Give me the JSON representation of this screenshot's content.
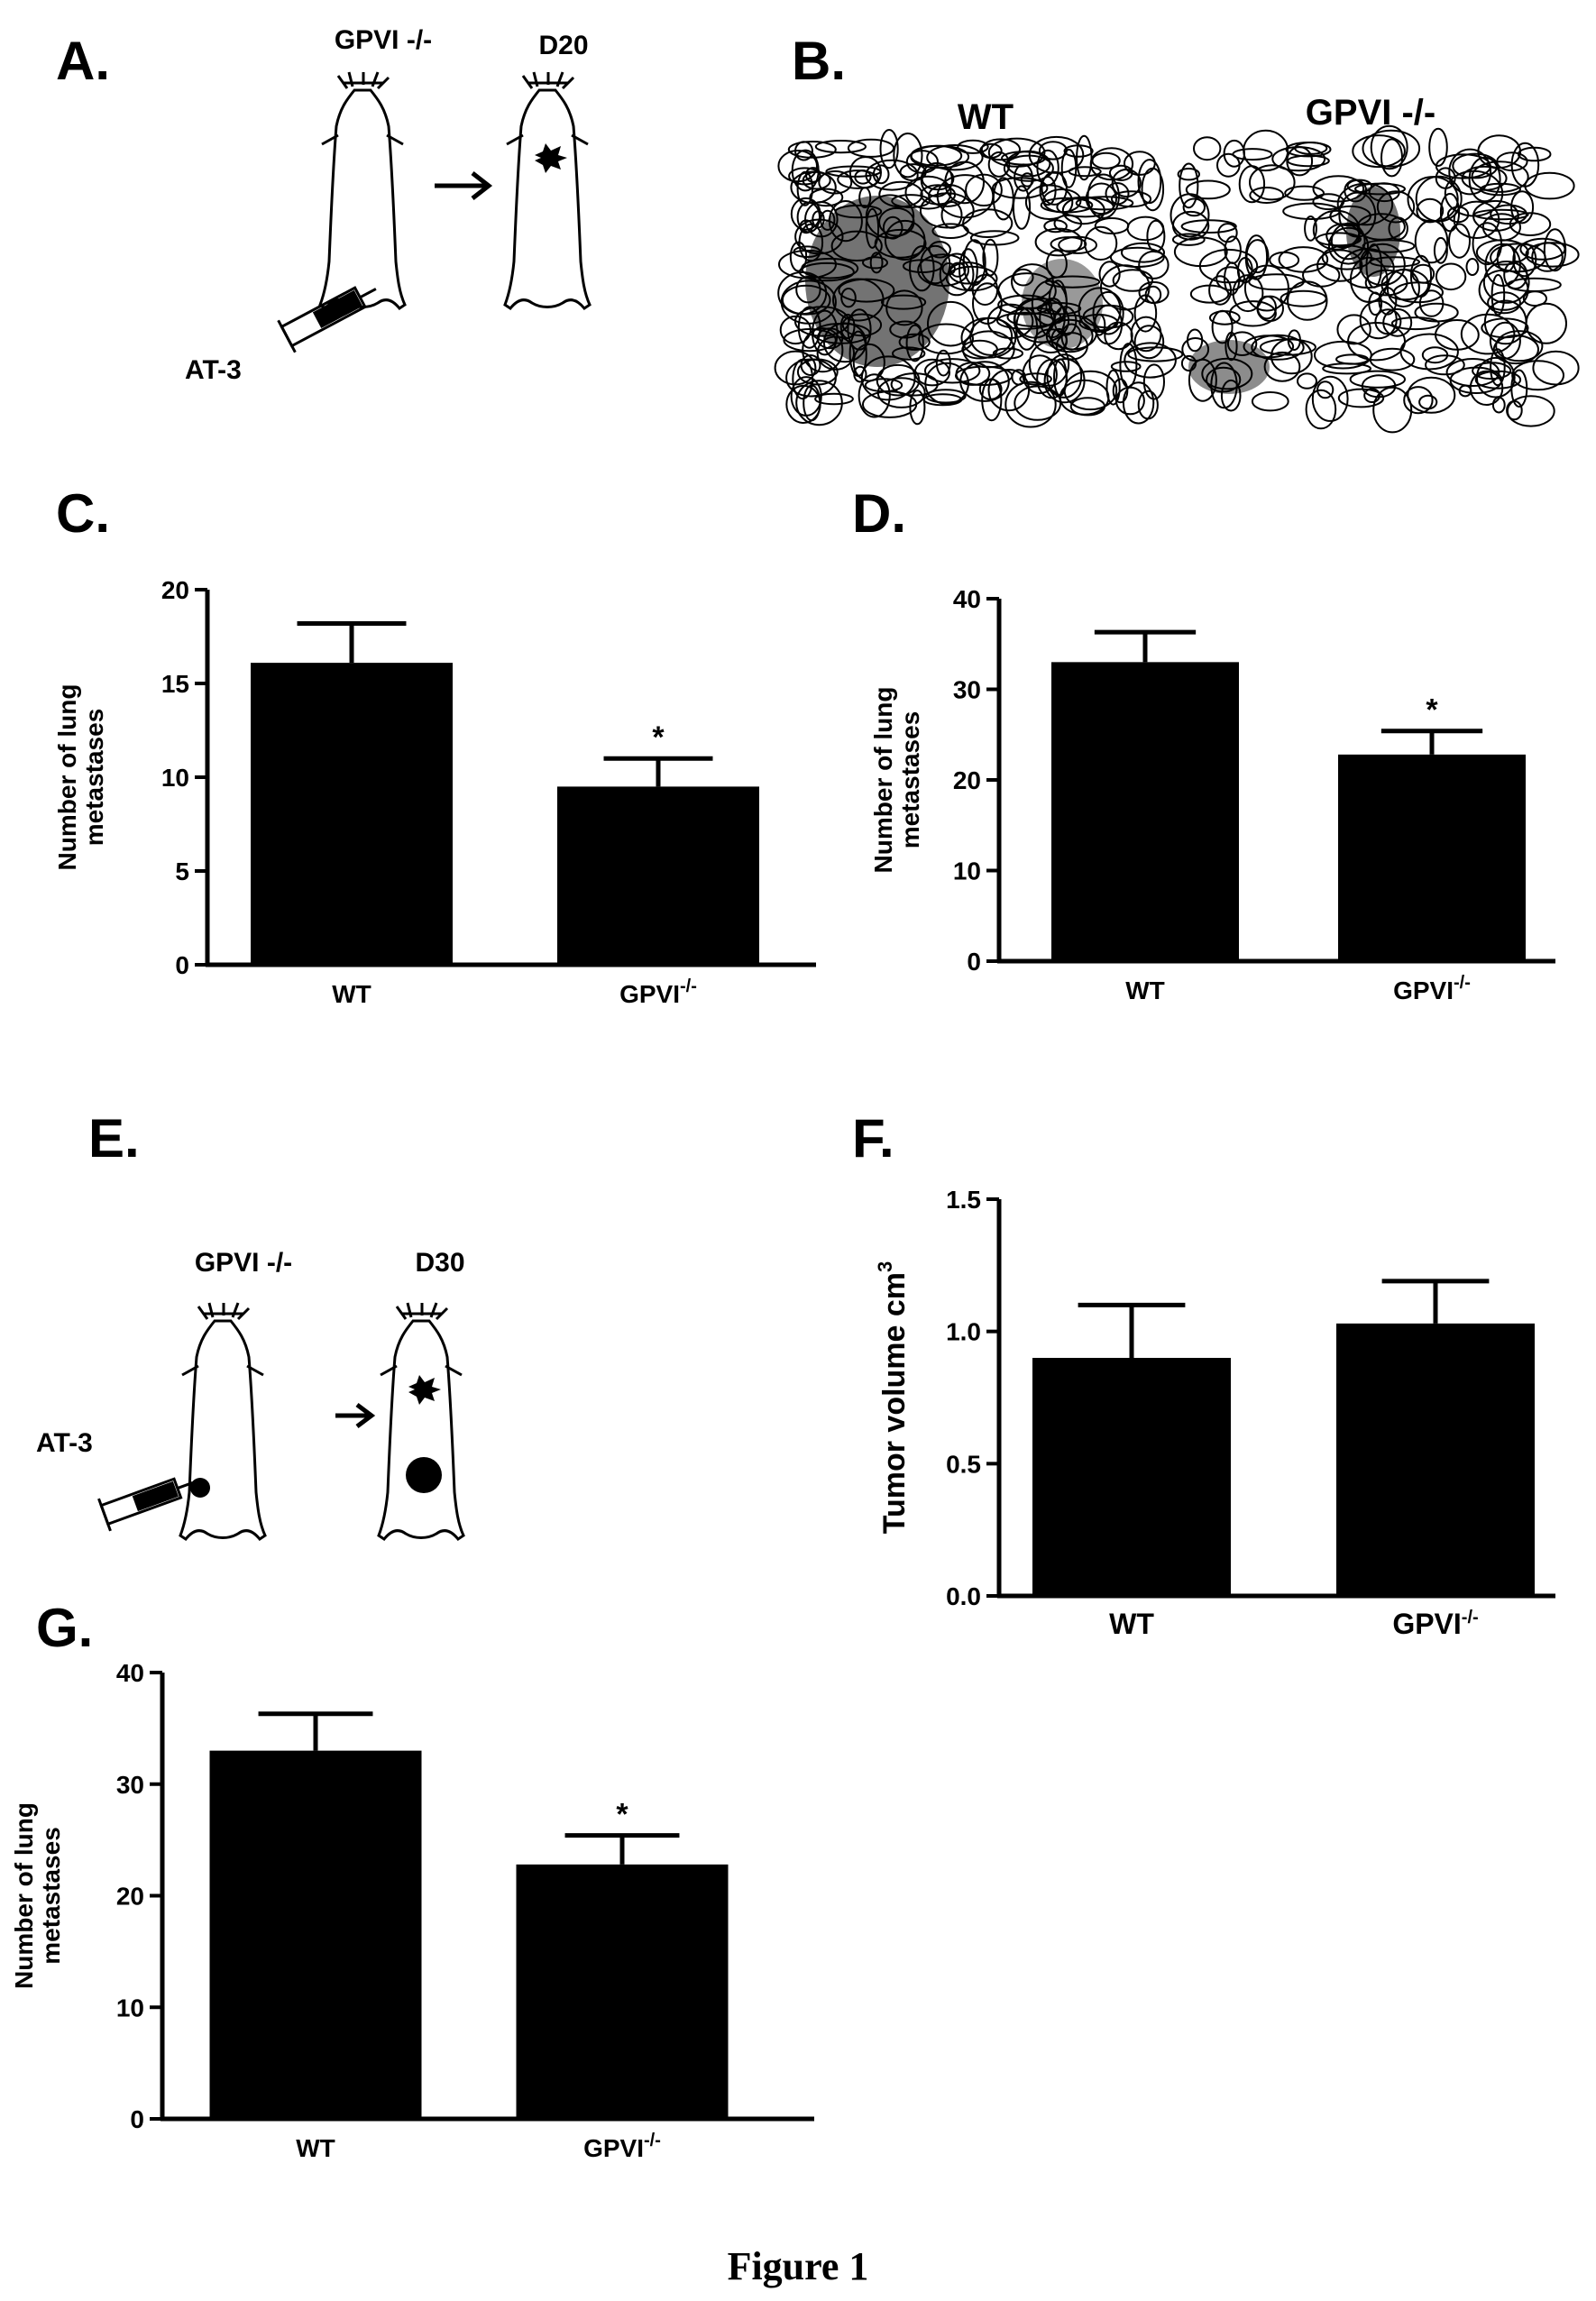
{
  "figure_caption": "Figure 1",
  "panels": {
    "A": {
      "letter": "A.",
      "strain_label": "GPVI -/-",
      "day_label": "D20",
      "injection_label": "AT-3"
    },
    "B": {
      "letter": "B.",
      "image_labels": [
        "WT",
        "GPVI -/-"
      ]
    },
    "C": {
      "letter": "C."
    },
    "D": {
      "letter": "D."
    },
    "E": {
      "letter": "E.",
      "strain_label": "GPVI -/-",
      "day_label": "D30",
      "injection_label": "AT-3"
    },
    "F": {
      "letter": "F."
    },
    "G": {
      "letter": "G."
    }
  },
  "icons": [
    "mouse-icon",
    "syringe-icon",
    "arrow-right-icon",
    "tumor-icon",
    "star-burst-icon",
    "microscopy-image"
  ],
  "colors": {
    "bar_fill": "#000000",
    "axis": "#000000",
    "background": "#ffffff"
  },
  "chart_data": [
    {
      "id": "C",
      "type": "bar",
      "categories": [
        "WT",
        "GPVI"
      ],
      "category_superscripts": [
        "",
        "-/-"
      ],
      "values": [
        16.1,
        9.5
      ],
      "errors": [
        2.1,
        1.5
      ],
      "significance": [
        "",
        "*"
      ],
      "ylabel_lines": [
        "Number of lung",
        "metastases"
      ],
      "ylim": [
        0,
        20
      ],
      "yticks": [
        "0",
        "5",
        "10",
        "15",
        "20"
      ],
      "ytick_values": [
        0,
        5,
        10,
        15,
        20
      ],
      "grid": false
    },
    {
      "id": "D",
      "type": "bar",
      "categories": [
        "WT",
        "GPVI"
      ],
      "category_superscripts": [
        "",
        "-/-"
      ],
      "values": [
        33,
        22.8
      ],
      "errors": [
        3.3,
        2.6
      ],
      "significance": [
        "",
        "*"
      ],
      "ylabel_lines": [
        "Number of lung",
        "metastases"
      ],
      "ylim": [
        0,
        40
      ],
      "yticks": [
        "0",
        "10",
        "20",
        "30",
        "40"
      ],
      "ytick_values": [
        0,
        10,
        20,
        30,
        40
      ],
      "grid": false
    },
    {
      "id": "F",
      "type": "bar",
      "categories": [
        "WT",
        "GPVI"
      ],
      "category_superscripts": [
        "",
        "-/-"
      ],
      "values": [
        0.9,
        1.03
      ],
      "errors": [
        0.2,
        0.16
      ],
      "significance": [
        "",
        ""
      ],
      "ylabel_lines": [
        "Tumor volume cm"
      ],
      "ylabel_superscript": "3",
      "ylim": [
        0,
        1.5
      ],
      "yticks": [
        "0.0",
        "0.5",
        "1.0",
        "1.5"
      ],
      "ytick_values": [
        0,
        0.5,
        1.0,
        1.5
      ],
      "grid": false
    },
    {
      "id": "G",
      "type": "bar",
      "categories": [
        "WT",
        "GPVI"
      ],
      "category_superscripts": [
        "",
        "-/-"
      ],
      "values": [
        33,
        22.8
      ],
      "errors": [
        3.3,
        2.6
      ],
      "significance": [
        "",
        "*"
      ],
      "ylabel_lines": [
        "Number of lung",
        "metastases"
      ],
      "ylim": [
        0,
        40
      ],
      "yticks": [
        "0",
        "10",
        "20",
        "30",
        "40"
      ],
      "ytick_values": [
        0,
        10,
        20,
        30,
        40
      ],
      "grid": false
    }
  ]
}
